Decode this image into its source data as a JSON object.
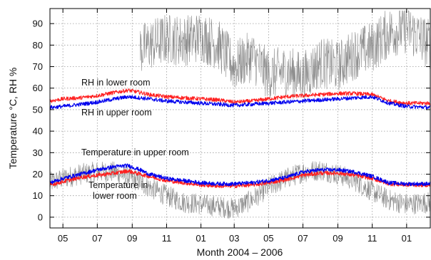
{
  "chart_data": {
    "type": "line",
    "title": "",
    "xlabel": "Month 2004 – 2006",
    "ylabel": "Temperature °C, RH %",
    "ylim": [
      -5,
      97
    ],
    "xlim": [
      "2004-04-08",
      "2006-02-12"
    ],
    "grid": true,
    "x_tick_labels": [
      "05",
      "07",
      "09",
      "11",
      "01",
      "03",
      "05",
      "07",
      "09",
      "11",
      "01"
    ],
    "x_tick_dates": [
      "2004-05-01",
      "2004-07-01",
      "2004-09-01",
      "2004-11-01",
      "2005-01-01",
      "2005-03-01",
      "2005-05-01",
      "2005-07-01",
      "2005-09-01",
      "2005-11-01",
      "2006-01-01"
    ],
    "y_ticks": [
      0,
      10,
      20,
      30,
      40,
      50,
      60,
      70,
      80,
      90
    ],
    "annotations": [
      {
        "text": "RH in lower room"
      },
      {
        "text": "RH in upper room"
      },
      {
        "text": "Temperature in upper room"
      },
      {
        "text": "Temperature in"
      },
      {
        "text": "lower room"
      }
    ],
    "series": [
      {
        "color": "#ff2020",
        "x": [
          "2004-04-08",
          "2004-05-01",
          "2004-06-01",
          "2004-07-01",
          "2004-08-01",
          "2004-08-25",
          "2004-09-15",
          "2004-10-01",
          "2004-11-01",
          "2004-12-01",
          "2005-01-01",
          "2005-02-01",
          "2005-03-01",
          "2005-04-01",
          "2005-05-01",
          "2005-06-01",
          "2005-07-01",
          "2005-08-01",
          "2005-09-01",
          "2005-10-01",
          "2005-11-01",
          "2005-12-01",
          "2006-01-01",
          "2006-02-12"
        ],
        "y": [
          54,
          55,
          55.5,
          56.5,
          58,
          59,
          58,
          57,
          56,
          55.5,
          55,
          54.5,
          53.5,
          54,
          55,
          56,
          56.5,
          57,
          57.5,
          57.5,
          57,
          54,
          53,
          53
        ]
      },
      {
        "color": "#0000ee",
        "x": [
          "2004-04-08",
          "2004-05-01",
          "2004-06-01",
          "2004-07-01",
          "2004-08-01",
          "2004-08-25",
          "2004-09-15",
          "2004-10-01",
          "2004-11-01",
          "2004-12-01",
          "2005-01-01",
          "2005-02-01",
          "2005-03-01",
          "2005-04-01",
          "2005-05-01",
          "2005-06-01",
          "2005-07-01",
          "2005-08-01",
          "2005-09-01",
          "2005-10-01",
          "2005-11-01",
          "2005-12-01",
          "2006-01-01",
          "2006-02-12"
        ],
        "y": [
          51,
          51.5,
          52.5,
          53.5,
          55,
          56,
          55.5,
          55,
          54,
          53.5,
          53,
          52.5,
          52,
          52.5,
          53,
          53.5,
          54,
          54.5,
          55,
          55.5,
          56,
          53,
          51.5,
          51
        ]
      },
      {
        "color": "#0000ee",
        "x": [
          "2004-04-08",
          "2004-05-01",
          "2004-06-01",
          "2004-07-01",
          "2004-08-01",
          "2004-08-25",
          "2004-09-15",
          "2004-10-01",
          "2004-11-01",
          "2004-12-01",
          "2005-01-01",
          "2005-02-01",
          "2005-03-01",
          "2005-04-01",
          "2005-05-01",
          "2005-06-01",
          "2005-07-01",
          "2005-08-01",
          "2005-09-01",
          "2005-10-01",
          "2005-11-01",
          "2005-12-01",
          "2006-01-01",
          "2006-02-12"
        ],
        "y": [
          16,
          18,
          20,
          22,
          23.5,
          24,
          22,
          20,
          18,
          17,
          16,
          15.5,
          15.5,
          16,
          17,
          18.5,
          21,
          22,
          22,
          21,
          19,
          16,
          15.5,
          15.5
        ]
      },
      {
        "color": "#ff2020",
        "x": [
          "2004-04-08",
          "2004-05-01",
          "2004-06-01",
          "2004-07-01",
          "2004-08-01",
          "2004-08-25",
          "2004-09-15",
          "2004-10-01",
          "2004-11-01",
          "2004-12-01",
          "2005-01-01",
          "2005-02-01",
          "2005-03-01",
          "2005-04-01",
          "2005-05-01",
          "2005-06-01",
          "2005-07-01",
          "2005-08-01",
          "2005-09-01",
          "2005-10-01",
          "2005-11-01",
          "2005-12-01",
          "2006-01-01",
          "2006-02-12"
        ],
        "y": [
          15,
          16.5,
          18.5,
          19.5,
          20.5,
          21.5,
          20,
          19,
          17,
          16,
          15,
          14.5,
          14.5,
          15,
          16,
          17.5,
          19.5,
          20.5,
          20.5,
          19.5,
          18,
          15.5,
          15,
          15
        ]
      },
      {
        "color": "#8c8c8c",
        "x": [
          "2004-04-08",
          "2004-05-01",
          "2004-06-01",
          "2004-07-01",
          "2004-08-01",
          "2004-09-01",
          "2004-10-01",
          "2004-11-01",
          "2004-12-01",
          "2005-01-01",
          "2005-02-01",
          "2005-03-01",
          "2005-04-01",
          "2005-05-01",
          "2005-06-01",
          "2005-07-01",
          "2005-08-01",
          "2005-09-01",
          "2005-10-01",
          "2005-11-01",
          "2005-12-01",
          "2006-01-01",
          "2006-02-12"
        ],
        "y": [
          16,
          18,
          20,
          21,
          21,
          18,
          14,
          10,
          7,
          6,
          5,
          4,
          8,
          14,
          18,
          21,
          22,
          20,
          17,
          12,
          8,
          6,
          7
        ]
      },
      {
        "color": "#8c8c8c",
        "x": [
          "2004-09-15",
          "2004-10-01",
          "2004-11-01",
          "2004-12-01",
          "2005-01-01",
          "2005-02-01",
          "2005-03-01",
          "2005-04-01",
          "2005-05-01",
          "2005-06-01",
          "2005-07-01",
          "2005-08-01",
          "2005-09-01",
          "2005-10-01",
          "2005-11-01",
          "2005-12-01",
          "2006-01-01",
          "2006-02-12"
        ],
        "y": [
          78,
          80,
          83,
          82,
          84,
          80,
          70,
          75,
          66,
          68,
          65,
          72,
          70,
          76,
          79,
          86,
          88,
          80
        ]
      }
    ]
  }
}
